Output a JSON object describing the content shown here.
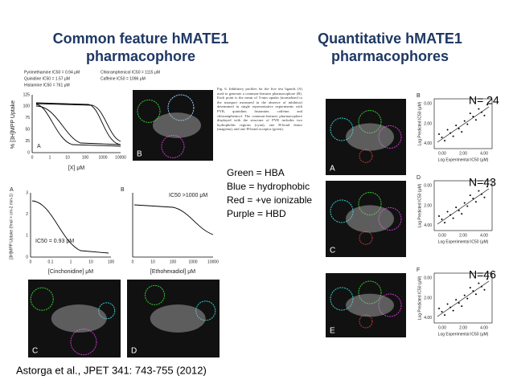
{
  "left_title": "Common feature hMATE1 pharmacophore",
  "right_title": "Quantitative hMATE1 pharmacophores",
  "top_legend": [
    "Pyrimethamine IC50 = 0.94 μM",
    "Quinidine IC50 = 1.57 μM",
    "Histamine IC50 = 761 μM",
    "Chloramphenicol IC50 = 1115 μM",
    "Caffeine IC50 = 1096 μM"
  ],
  "plot_top": {
    "panel": "A",
    "y_label": "% [3H]MPP Uptake",
    "x_label": "[X] μM",
    "yticks": [
      "0",
      "25",
      "50",
      "75",
      "100",
      "125"
    ],
    "xticks": [
      "0",
      "1",
      "10",
      "100",
      "1000",
      "10000"
    ]
  },
  "image_top": {
    "panel": "B"
  },
  "caption": "Fig. 6. Inhibitory profiles for the five test ligands (A) used to generate a common-features pharmacophore (B). Each point is the mean of 5-min uptake (normalized to the transport measured in the absence of inhibitor) determined in single representative experiments with PYR, quinidine, histamine, caffeine, and chloramphenicol. The common-features pharmacophore displayed with the structure of PYR includes two hydrophobic regions (cyan), one H-bond donor (magenta), and one H-bond acceptor (green).",
  "color_key": [
    "Green = HBA",
    "Blue = hydrophobic",
    "Red = +ve ionizable",
    "Purple = HBD"
  ],
  "plot_mid_a": {
    "panel": "A",
    "y_label": "[3H]MPP Uptake (fmol × cm-2 min-1)",
    "x_label": "[Cinchonidine] μM",
    "annotation": "IC50 = 0.93 μM",
    "yticks": [
      "0",
      "1",
      "2",
      "3"
    ],
    "xticks": [
      "0",
      "0.1",
      "1",
      "10",
      "100"
    ]
  },
  "plot_mid_b": {
    "panel": "B",
    "x_label": "[Ethohexadiol] μM",
    "annotation": "IC50 >1000 μM",
    "xticks": [
      "0",
      "10",
      "100",
      "1000",
      "10000"
    ]
  },
  "image_bottom": [
    "C",
    "D"
  ],
  "right_images": [
    "A",
    "C",
    "E"
  ],
  "right_plots": [
    {
      "panel": "B",
      "n_label": "N= 24"
    },
    {
      "panel": "D",
      "n_label": "N=43"
    },
    {
      "panel": "F",
      "n_label": "N=46"
    }
  ],
  "right_plot_axes": {
    "y_label": "Log Predicted IC50 (μM)",
    "x_label": "Log Experimental IC50 (μM)",
    "yticks": [
      "4.00",
      "2.00",
      "0.00"
    ],
    "xticks": [
      "0.00",
      "2.00",
      "4.00"
    ]
  },
  "citation": "Astorga et al., JPET 341: 743-755 (2012)"
}
